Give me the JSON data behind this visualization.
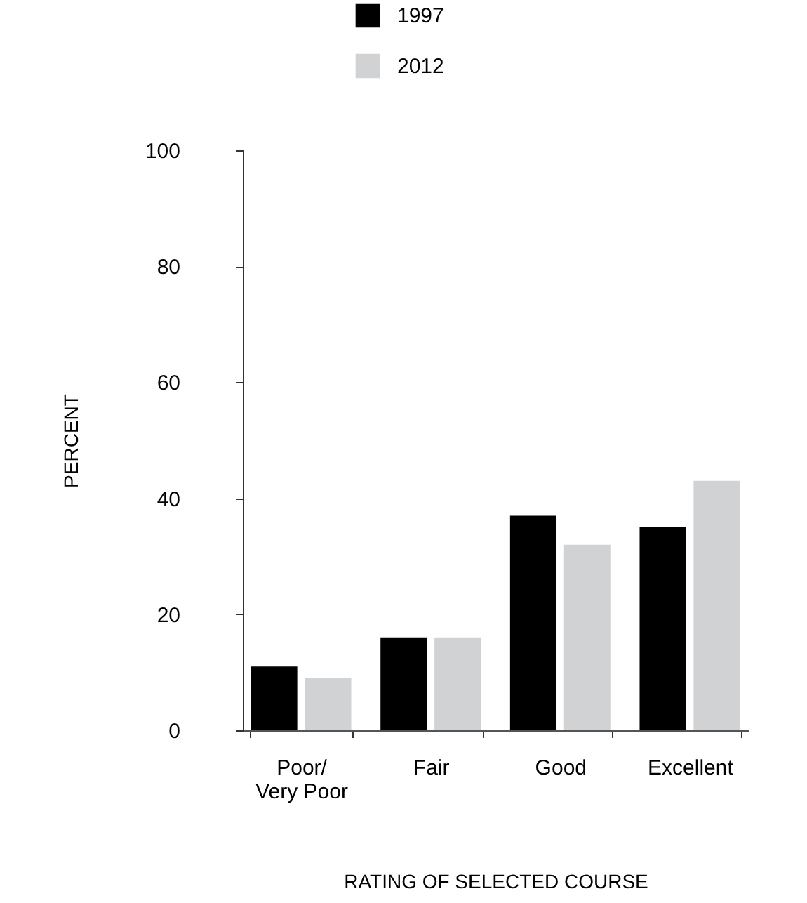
{
  "chart_data": {
    "type": "bar",
    "xlabel": "RATING OF SELECTED COURSE",
    "ylabel": "PERCENT",
    "categories": [
      "Poor/\nVery Poor",
      "Fair",
      "Good",
      "Excellent"
    ],
    "series": [
      {
        "name": "1997",
        "color": "#000000",
        "values": [
          11,
          16,
          37,
          35
        ]
      },
      {
        "name": "2012",
        "color": "#d1d2d4",
        "values": [
          9,
          16,
          32,
          43
        ]
      }
    ],
    "ylim": [
      0,
      100
    ],
    "yticks": [
      0,
      20,
      40,
      60,
      80,
      100
    ],
    "grid": false,
    "legend": "top"
  }
}
